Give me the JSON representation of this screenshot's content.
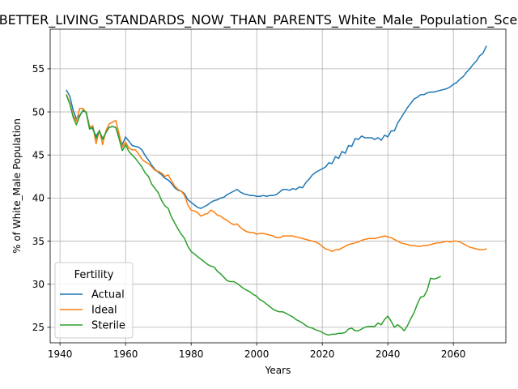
{
  "chart_data": {
    "type": "line",
    "title": "BETTER_LIVING_STANDARDS_NOW_THAN_PARENTS_White_Male_Population_Scenarios",
    "xlabel": "Years",
    "ylabel": "% of White_Male Population",
    "xlim": [
      1937,
      2076
    ],
    "ylim": [
      23.2,
      59.6
    ],
    "xticks": [
      1940,
      1960,
      1980,
      2000,
      2020,
      2040,
      2060
    ],
    "yticks": [
      25,
      30,
      35,
      40,
      45,
      50,
      55
    ],
    "grid": true,
    "legend": {
      "title": "Fertility",
      "placement": "lower-left"
    },
    "series": [
      {
        "name": "Actual",
        "color": "#1f77b4",
        "x": [
          1942,
          1943,
          1944,
          1945,
          1946,
          1947,
          1948,
          1949,
          1950,
          1951,
          1952,
          1953,
          1954,
          1955,
          1956,
          1957,
          1958,
          1959,
          1960,
          1961,
          1962,
          1963,
          1964,
          1965,
          1966,
          1967,
          1968,
          1969,
          1970,
          1971,
          1972,
          1973,
          1974,
          1975,
          1976,
          1977,
          1978,
          1979,
          1980,
          1981,
          1982,
          1983,
          1984,
          1985,
          1986,
          1987,
          1988,
          1989,
          1990,
          1991,
          1992,
          1993,
          1994,
          1995,
          1996,
          1997,
          1998,
          1999,
          2000,
          2001,
          2002,
          2003,
          2004,
          2005,
          2006,
          2007,
          2008,
          2009,
          2010,
          2011,
          2012,
          2013,
          2014,
          2015,
          2016,
          2017,
          2018,
          2019,
          2020,
          2021,
          2022,
          2023,
          2024,
          2025,
          2026,
          2027,
          2028,
          2029,
          2030,
          2031,
          2032,
          2033,
          2034,
          2035,
          2036,
          2037,
          2038,
          2039,
          2040,
          2041,
          2042,
          2043,
          2044,
          2045,
          2046,
          2047,
          2048,
          2049,
          2050,
          2051,
          2052,
          2053,
          2054,
          2055,
          2056,
          2057,
          2058,
          2059,
          2060,
          2061,
          2062,
          2063,
          2064,
          2065,
          2066,
          2067,
          2068,
          2069,
          2070
        ],
        "values": [
          52.5,
          51.8,
          50.2,
          49.2,
          49.6,
          50.1,
          50.0,
          48.3,
          48.0,
          47.2,
          47.8,
          46.9,
          47.6,
          48.2,
          48.3,
          48.2,
          47.1,
          46.2,
          47.1,
          46.6,
          46.1,
          46.0,
          45.9,
          45.6,
          44.9,
          44.4,
          43.8,
          43.3,
          43.0,
          42.7,
          42.3,
          42.1,
          41.7,
          41.2,
          40.9,
          40.8,
          40.5,
          39.8,
          39.5,
          39.2,
          38.9,
          38.8,
          39.0,
          39.2,
          39.5,
          39.7,
          39.8,
          40.0,
          40.1,
          40.4,
          40.6,
          40.8,
          41.0,
          40.7,
          40.5,
          40.4,
          40.3,
          40.3,
          40.2,
          40.2,
          40.3,
          40.2,
          40.3,
          40.3,
          40.4,
          40.7,
          41.0,
          41.0,
          40.9,
          41.1,
          41.0,
          41.3,
          41.2,
          41.8,
          42.2,
          42.7,
          43.0,
          43.2,
          43.4,
          43.6,
          44.1,
          44.0,
          44.8,
          44.6,
          45.4,
          45.2,
          46.1,
          46.0,
          46.9,
          46.8,
          47.2,
          47.0,
          47.0,
          47.0,
          46.8,
          47.0,
          46.7,
          47.3,
          47.1,
          47.8,
          47.8,
          48.7,
          49.3,
          49.9,
          50.5,
          51.0,
          51.5,
          51.7,
          52.0,
          52.0,
          52.2,
          52.3,
          52.3,
          52.4,
          52.5,
          52.6,
          52.7,
          52.9,
          53.2,
          53.4,
          53.8,
          54.1,
          54.6,
          55.0,
          55.5,
          55.9,
          56.5,
          56.8,
          57.6
        ]
      },
      {
        "name": "Ideal",
        "color": "#ff7f0e",
        "x": [
          1942,
          1943,
          1944,
          1945,
          1946,
          1947,
          1948,
          1949,
          1950,
          1951,
          1952,
          1953,
          1954,
          1955,
          1956,
          1957,
          1958,
          1959,
          1960,
          1961,
          1962,
          1963,
          1964,
          1965,
          1966,
          1967,
          1968,
          1969,
          1970,
          1971,
          1972,
          1973,
          1974,
          1975,
          1976,
          1977,
          1978,
          1979,
          1980,
          1981,
          1982,
          1983,
          1984,
          1985,
          1986,
          1987,
          1988,
          1989,
          1990,
          1991,
          1992,
          1993,
          1994,
          1995,
          1996,
          1997,
          1998,
          1999,
          2000,
          2001,
          2002,
          2003,
          2004,
          2005,
          2006,
          2007,
          2008,
          2009,
          2010,
          2011,
          2012,
          2013,
          2014,
          2015,
          2016,
          2017,
          2018,
          2019,
          2020,
          2021,
          2022,
          2023,
          2024,
          2025,
          2026,
          2027,
          2028,
          2029,
          2030,
          2031,
          2032,
          2033,
          2034,
          2035,
          2036,
          2037,
          2038,
          2039,
          2040,
          2041,
          2042,
          2043,
          2044,
          2045,
          2046,
          2047,
          2048,
          2049,
          2050,
          2051,
          2052,
          2053,
          2054,
          2055,
          2056,
          2057,
          2058,
          2059,
          2060,
          2061,
          2062,
          2063,
          2064,
          2065,
          2066,
          2067,
          2068,
          2069,
          2070
        ],
        "values": [
          52.0,
          51.0,
          49.6,
          48.9,
          50.4,
          50.4,
          49.9,
          48.2,
          48.4,
          46.3,
          47.9,
          46.2,
          47.8,
          48.6,
          48.8,
          49.0,
          47.5,
          45.9,
          46.5,
          45.8,
          45.6,
          45.6,
          45.1,
          44.5,
          44.2,
          44.0,
          43.6,
          43.2,
          43.1,
          42.9,
          42.5,
          42.7,
          42.0,
          41.4,
          41.0,
          40.8,
          40.3,
          39.2,
          38.6,
          38.5,
          38.3,
          37.9,
          38.1,
          38.2,
          38.6,
          38.4,
          38.0,
          37.9,
          37.6,
          37.4,
          37.1,
          36.9,
          37.0,
          36.6,
          36.3,
          36.1,
          36.0,
          36.0,
          35.8,
          35.9,
          35.9,
          35.8,
          35.7,
          35.6,
          35.4,
          35.4,
          35.6,
          35.6,
          35.6,
          35.6,
          35.5,
          35.4,
          35.3,
          35.2,
          35.1,
          35.0,
          34.9,
          34.7,
          34.4,
          34.1,
          34.0,
          33.8,
          34.0,
          34.0,
          34.2,
          34.4,
          34.6,
          34.7,
          34.8,
          34.9,
          35.1,
          35.2,
          35.3,
          35.3,
          35.3,
          35.4,
          35.5,
          35.6,
          35.5,
          35.4,
          35.2,
          35.0,
          34.8,
          34.7,
          34.6,
          34.5,
          34.5,
          34.4,
          34.4,
          34.5,
          34.5,
          34.6,
          34.7,
          34.8,
          34.8,
          34.9,
          35.0,
          34.9,
          35.0,
          35.0,
          34.9,
          34.7,
          34.5,
          34.3,
          34.2,
          34.1,
          34.0,
          34.0,
          34.1
        ]
      },
      {
        "name": "Sterile",
        "color": "#2ca02c",
        "x": [
          1942,
          1943,
          1944,
          1945,
          1946,
          1947,
          1948,
          1949,
          1950,
          1951,
          1952,
          1953,
          1954,
          1955,
          1956,
          1957,
          1958,
          1959,
          1960,
          1961,
          1962,
          1963,
          1964,
          1965,
          1966,
          1967,
          1968,
          1969,
          1970,
          1971,
          1972,
          1973,
          1974,
          1975,
          1976,
          1977,
          1978,
          1979,
          1980,
          1981,
          1982,
          1983,
          1984,
          1985,
          1986,
          1987,
          1988,
          1989,
          1990,
          1991,
          1992,
          1993,
          1994,
          1995,
          1996,
          1997,
          1998,
          1999,
          2000,
          2001,
          2002,
          2003,
          2004,
          2005,
          2006,
          2007,
          2008,
          2009,
          2010,
          2011,
          2012,
          2013,
          2014,
          2015,
          2016,
          2017,
          2018,
          2019,
          2020,
          2021,
          2022,
          2023,
          2024,
          2025,
          2026,
          2027,
          2028,
          2029,
          2030,
          2031,
          2032,
          2033,
          2034,
          2035,
          2036,
          2037,
          2038,
          2039,
          2040,
          2041,
          2042,
          2043,
          2044,
          2045,
          2046,
          2047,
          2048,
          2049,
          2050,
          2051,
          2052,
          2053,
          2054,
          2055,
          2056
        ],
        "values": [
          51.9,
          50.9,
          49.4,
          48.5,
          49.5,
          50.2,
          49.9,
          48.0,
          48.2,
          46.9,
          47.8,
          46.8,
          47.6,
          48.2,
          48.3,
          48.2,
          46.9,
          45.5,
          46.2,
          45.4,
          45.0,
          44.6,
          44.1,
          43.6,
          42.9,
          42.5,
          41.6,
          41.1,
          40.6,
          39.7,
          39.1,
          38.8,
          37.8,
          37.1,
          36.4,
          35.8,
          35.3,
          34.4,
          33.8,
          33.5,
          33.2,
          32.9,
          32.6,
          32.3,
          32.1,
          32.0,
          31.5,
          31.2,
          30.8,
          30.4,
          30.3,
          30.3,
          30.1,
          29.8,
          29.5,
          29.3,
          29.1,
          28.8,
          28.6,
          28.2,
          28.0,
          27.7,
          27.4,
          27.1,
          26.9,
          26.8,
          26.8,
          26.6,
          26.4,
          26.2,
          25.9,
          25.7,
          25.5,
          25.2,
          25.0,
          24.9,
          24.7,
          24.6,
          24.4,
          24.2,
          24.1,
          24.2,
          24.2,
          24.3,
          24.3,
          24.4,
          24.8,
          24.9,
          24.6,
          24.6,
          24.8,
          25.0,
          25.1,
          25.1,
          25.1,
          25.5,
          25.3,
          25.9,
          26.3,
          25.7,
          25.0,
          25.3,
          25.0,
          24.6,
          25.2,
          26.0,
          26.7,
          27.7,
          28.5,
          28.6,
          29.3,
          30.7,
          30.6,
          30.7,
          30.9
        ]
      }
    ]
  }
}
